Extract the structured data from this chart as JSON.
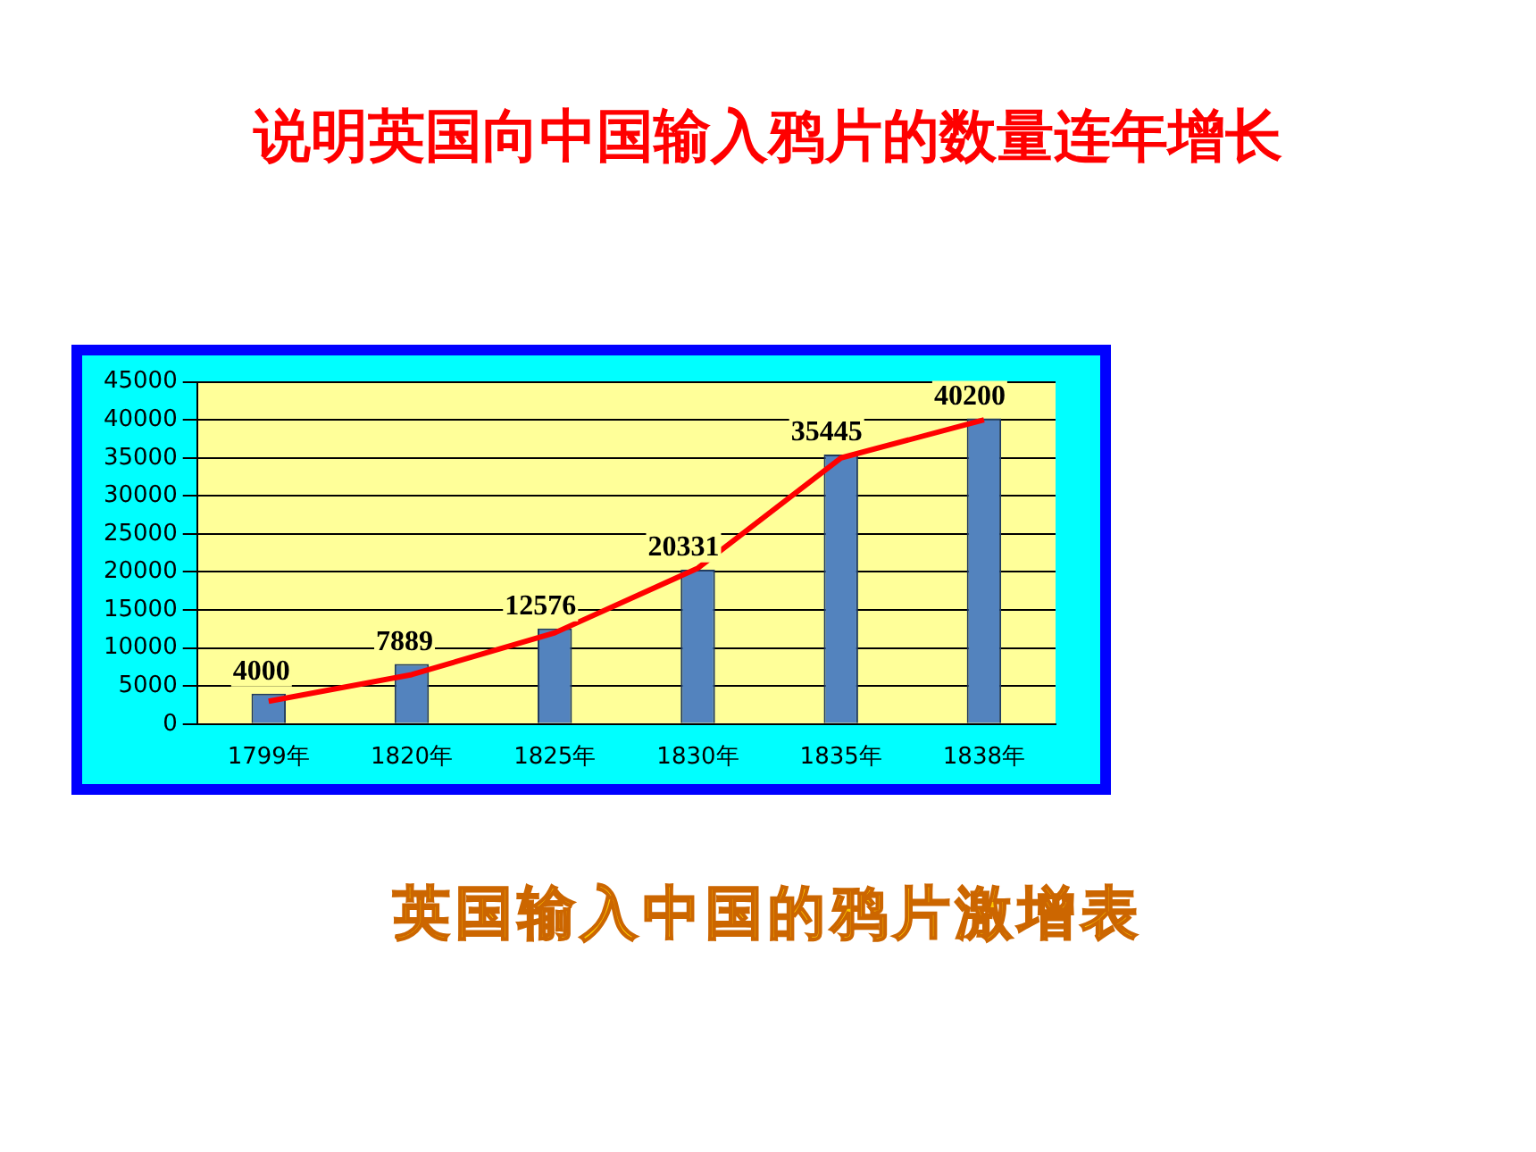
{
  "chart_data": {
    "type": "bar",
    "title": "说明英国向中国输入鸦片的数量连年增长",
    "subtitle": "英国输入中国的鸦片激增表",
    "categories": [
      "1799年",
      "1820年",
      "1825年",
      "1830年",
      "1835年",
      "1838年"
    ],
    "series": [
      {
        "color": "#5383be",
        "values": [
          4000,
          7889,
          12576,
          20331,
          35445,
          40200
        ],
        "value_labels": [
          "4000",
          "7889",
          "12576",
          "20331",
          "35445",
          "40200"
        ]
      },
      {
        "type": "line",
        "color": "#ff0000",
        "marker": "none",
        "values": [
          3000,
          6500,
          12000,
          20500,
          35000,
          40000
        ]
      }
    ],
    "ylim": [
      0,
      45000
    ],
    "yticks": [
      0,
      5000,
      10000,
      15000,
      20000,
      25000,
      30000,
      35000,
      40000,
      45000
    ],
    "grid": "y"
  }
}
